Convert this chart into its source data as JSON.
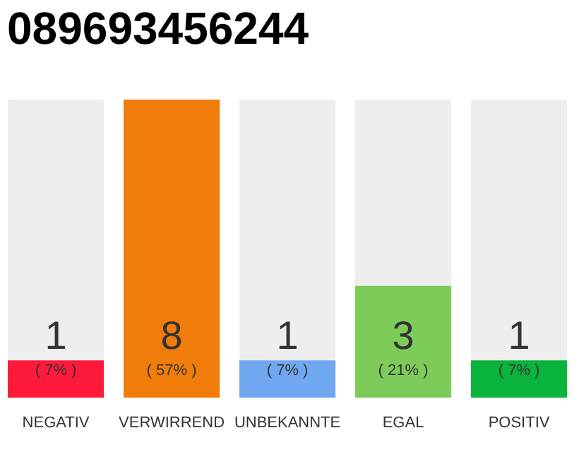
{
  "chart_data": {
    "type": "bar",
    "title": "089693456244",
    "categories": [
      "NEGATIV",
      "VERWIRREND",
      "UNBEKANNTE",
      "EGAL",
      "POSITIV"
    ],
    "values": [
      1,
      8,
      1,
      3,
      1
    ],
    "colors": [
      "#ff1a3c",
      "#f07d0a",
      "#6fa8f0",
      "#7dcc5a",
      "#0ab43c"
    ],
    "ylim": [
      0,
      8
    ],
    "data_labels": true,
    "grid": false,
    "tick_labels": "x",
    "annotations": [
      "( 7% )",
      "( 57% )",
      "( 7% )",
      "( 21% )",
      "( 7% )"
    ]
  }
}
